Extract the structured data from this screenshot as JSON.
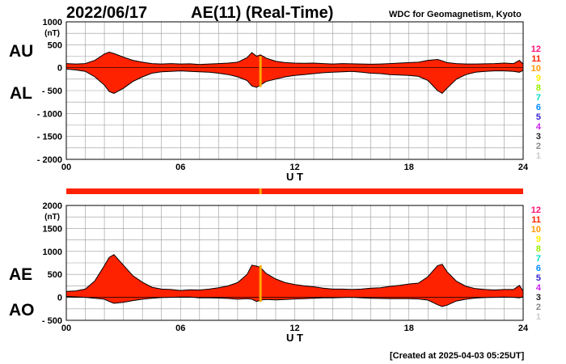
{
  "header": {
    "date": "2022/06/17",
    "title": "AE(11) (Real-Time)",
    "source": "WDC for Geomagnetism, Kyoto"
  },
  "footer": {
    "created": "[Created at 2025-04-03 05:25UT]"
  },
  "colors": {
    "fill": "#ff2200",
    "outline": "#000000",
    "marker": "#ffaa00",
    "grid": "#999999"
  },
  "station_legend": [
    {
      "label": "12",
      "color": "#ff1177"
    },
    {
      "label": "11",
      "color": "#ff2200"
    },
    {
      "label": "10",
      "color": "#ff9900"
    },
    {
      "label": "9",
      "color": "#ffee00"
    },
    {
      "label": "8",
      "color": "#99ee00"
    },
    {
      "label": "7",
      "color": "#00ddcc"
    },
    {
      "label": "6",
      "color": "#0088ff"
    },
    {
      "label": "5",
      "color": "#3322cc"
    },
    {
      "label": "4",
      "color": "#cc22ee"
    },
    {
      "label": "3",
      "color": "#222222"
    },
    {
      "label": "2",
      "color": "#888888"
    },
    {
      "label": "1",
      "color": "#cccccc"
    }
  ],
  "chart_data": [
    {
      "type": "area",
      "series_labels": [
        "AU",
        "AL"
      ],
      "unit": "(nT)",
      "xlabel": "U T",
      "xlim": [
        0,
        24
      ],
      "ylim": [
        -2000,
        1000
      ],
      "x_ticks": [
        "00",
        "06",
        "12",
        "18",
        "24"
      ],
      "y_ticks": [
        "1000",
        "500",
        "0",
        "- 500",
        "- 1000",
        "- 1500",
        "- 2000"
      ],
      "marker_ut": 10.2,
      "grid": true,
      "x": [
        0,
        0.5,
        1,
        1.5,
        2,
        2.25,
        2.5,
        3,
        3.5,
        4,
        4.5,
        5,
        5.5,
        6,
        6.5,
        7,
        7.5,
        8,
        8.5,
        9,
        9.5,
        9.75,
        10,
        10.2,
        10.5,
        11,
        11.5,
        12,
        12.5,
        13,
        13.5,
        14,
        14.5,
        15,
        15.5,
        16,
        16.5,
        17,
        17.5,
        18,
        18.5,
        19,
        19.5,
        19.75,
        20,
        20.5,
        21,
        21.5,
        22,
        22.5,
        23,
        23.5,
        23.8,
        24
      ],
      "upper": [
        90,
        80,
        90,
        160,
        300,
        340,
        310,
        230,
        160,
        120,
        90,
        80,
        90,
        80,
        85,
        70,
        80,
        90,
        100,
        120,
        220,
        330,
        250,
        280,
        210,
        140,
        110,
        100,
        95,
        100,
        90,
        80,
        90,
        85,
        80,
        75,
        80,
        90,
        100,
        110,
        120,
        160,
        180,
        150,
        110,
        90,
        80,
        80,
        85,
        90,
        100,
        90,
        160,
        80
      ],
      "lower": [
        -30,
        -50,
        -80,
        -200,
        -380,
        -520,
        -560,
        -450,
        -300,
        -200,
        -120,
        -90,
        -80,
        -70,
        -80,
        -90,
        -100,
        -120,
        -150,
        -200,
        -280,
        -400,
        -430,
        -380,
        -300,
        -250,
        -200,
        -170,
        -150,
        -130,
        -110,
        -100,
        -90,
        -80,
        -100,
        -120,
        -130,
        -150,
        -160,
        -170,
        -190,
        -280,
        -500,
        -560,
        -450,
        -250,
        -150,
        -100,
        -80,
        -70,
        -70,
        -80,
        -100,
        -60
      ]
    },
    {
      "type": "area",
      "series_labels": [
        "AE",
        "AO"
      ],
      "unit": "(nT)",
      "xlabel": "U T",
      "xlim": [
        0,
        24
      ],
      "ylim": [
        -500,
        2000
      ],
      "x_ticks": [
        "00",
        "06",
        "12",
        "18",
        "24"
      ],
      "y_ticks": [
        "2000",
        "1500",
        "1000",
        "500",
        "0",
        "- 500"
      ],
      "marker_ut": 10.2,
      "grid": true,
      "x": [
        0,
        0.5,
        1,
        1.5,
        2,
        2.25,
        2.5,
        3,
        3.5,
        4,
        4.5,
        5,
        5.5,
        6,
        6.5,
        7,
        7.5,
        8,
        8.5,
        9,
        9.5,
        9.75,
        10,
        10.2,
        10.5,
        11,
        11.5,
        12,
        12.5,
        13,
        13.5,
        14,
        14.5,
        15,
        15.5,
        16,
        16.5,
        17,
        17.5,
        18,
        18.5,
        19,
        19.5,
        19.75,
        20,
        20.5,
        21,
        21.5,
        22,
        22.5,
        23,
        23.5,
        23.8,
        24
      ],
      "upper": [
        130,
        140,
        180,
        360,
        690,
        870,
        930,
        700,
        470,
        330,
        220,
        180,
        170,
        150,
        165,
        160,
        180,
        210,
        250,
        320,
        500,
        700,
        680,
        650,
        520,
        400,
        320,
        280,
        250,
        230,
        200,
        180,
        180,
        170,
        180,
        200,
        210,
        240,
        260,
        290,
        310,
        450,
        690,
        720,
        560,
        350,
        240,
        190,
        170,
        160,
        170,
        170,
        260,
        140
      ],
      "lower": [
        20,
        10,
        0,
        -20,
        -40,
        -90,
        -130,
        -110,
        -70,
        -40,
        -20,
        -5,
        0,
        5,
        5,
        -10,
        -10,
        -15,
        -25,
        -40,
        -30,
        -40,
        -90,
        -60,
        -45,
        -55,
        -45,
        -35,
        -30,
        -20,
        -10,
        -10,
        -5,
        0,
        -10,
        -20,
        -25,
        -30,
        -30,
        -30,
        -35,
        -60,
        -160,
        -200,
        -170,
        -80,
        -40,
        -15,
        -5,
        0,
        5,
        0,
        -10,
        10
      ]
    }
  ]
}
